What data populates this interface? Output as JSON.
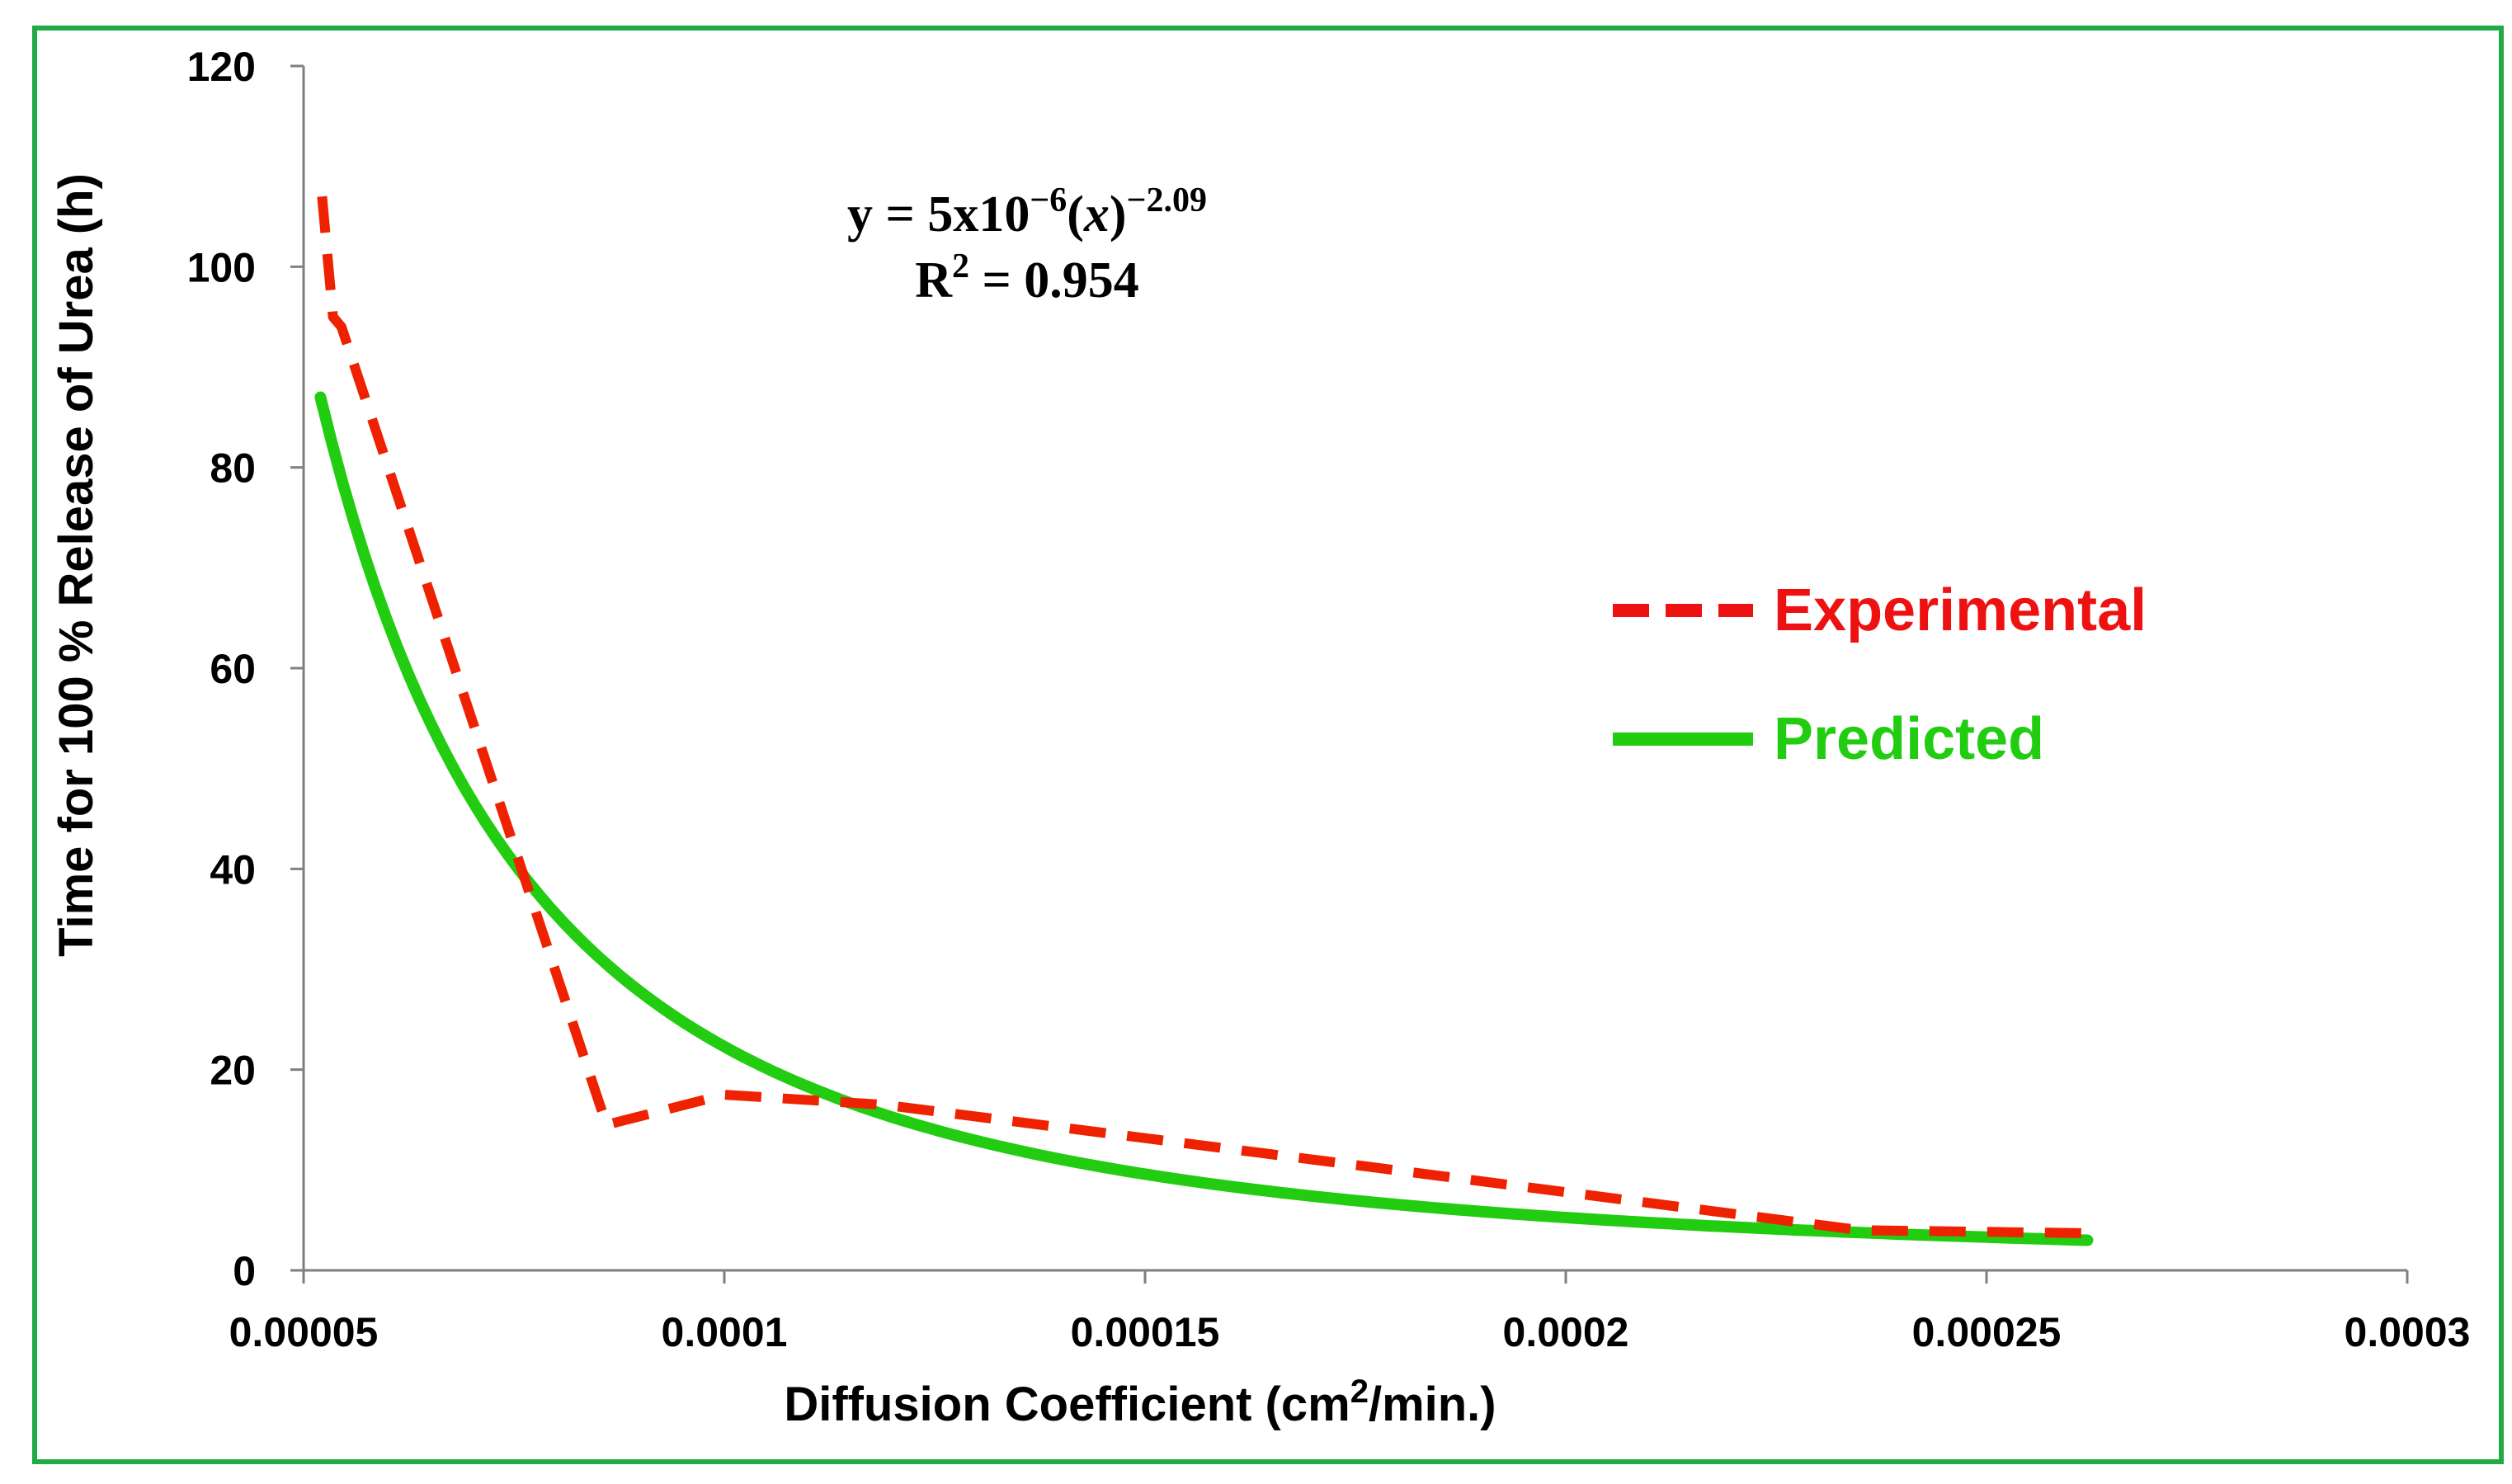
{
  "chart_data": {
    "type": "line",
    "title": "",
    "xlabel_main": "Diffusion Coefficient (cm",
    "xlabel_sup": "2",
    "xlabel_tail": "/min.)",
    "ylabel": "Time for 100 % Release of Urea (h)",
    "xlim": [
      5e-05,
      0.0003
    ],
    "ylim": [
      0,
      120
    ],
    "x_ticks": [
      5e-05,
      0.0001,
      0.00015,
      0.0002,
      0.00025,
      0.0003
    ],
    "x_tick_labels": [
      "0.00005",
      "0.0001",
      "0.00015",
      "0.0002",
      "0.00025",
      "0.0003"
    ],
    "y_ticks": [
      0,
      20,
      40,
      60,
      80,
      100,
      120
    ],
    "y_tick_labels": [
      "0",
      "20",
      "40",
      "60",
      "80",
      "100",
      "120"
    ],
    "grid": false,
    "legend_position": "right",
    "equation": {
      "prefix": "y = 5x10",
      "exp1": "−6",
      "mid": "(",
      "var": "x",
      "close": ")",
      "exp2": "−2.09",
      "r2_label": "R",
      "r2_sup": "2",
      "r2_value": " = 0.954"
    },
    "series": [
      {
        "name": "Experimental",
        "color": "#ee2200",
        "legend_color": "#ee1111",
        "style": "dashed",
        "x": [
          5.22e-05,
          5.35e-05,
          5.45e-05,
          8.6e-05,
          0.0001,
          0.000119,
          0.000175,
          0.000235,
          0.000262
        ],
        "y": [
          107,
          95,
          94,
          14.5,
          17.5,
          16.5,
          10.5,
          4,
          3.7
        ]
      },
      {
        "name": "Predicted",
        "color": "#22cc11",
        "legend_color": "#22cc11",
        "style": "solid",
        "model": {
          "a": 5e-06,
          "b": -2.09
        },
        "x_range": [
          5.2e-05,
          0.000262
        ],
        "y_end_values": [
          87,
          3
        ]
      }
    ]
  }
}
